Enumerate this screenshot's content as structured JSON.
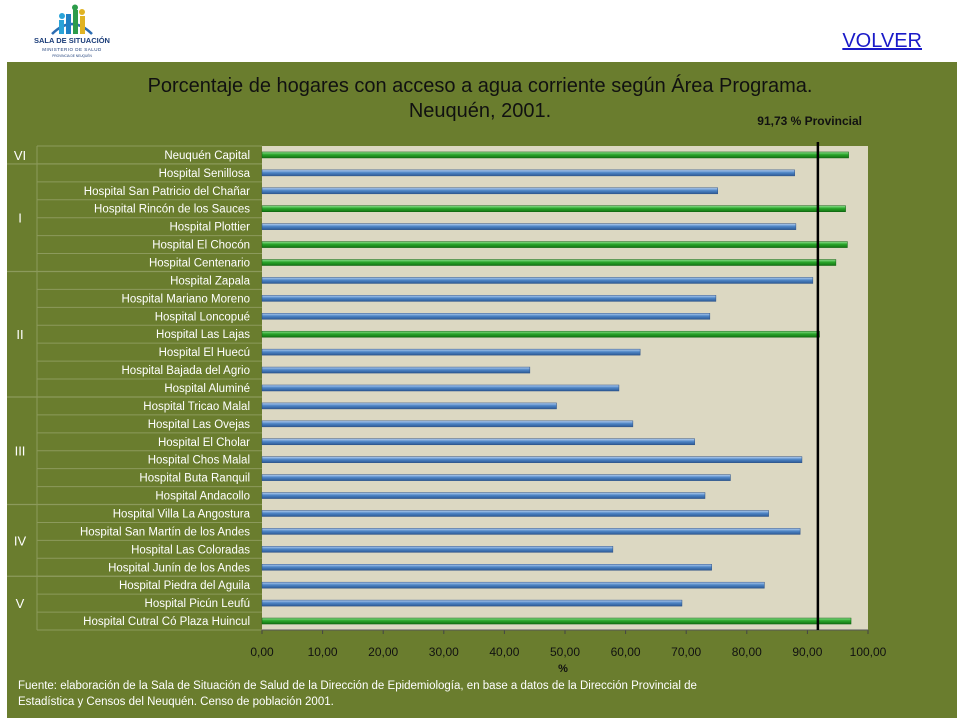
{
  "header": {
    "logo_text": "SALA DE SITUACIÓN",
    "logo_subtext": "MINISTERIO DE SALUD",
    "logo_subtext2": "PROVINCIA DE NEUQUÉN",
    "volver_label": "VOLVER"
  },
  "chart_data": {
    "type": "bar",
    "orientation": "horizontal",
    "title_line1": "Porcentaje de hogares con acceso a agua corriente según Área Programa.",
    "title_line2": "Neuquén, 2001.",
    "xlabel": "%",
    "xlim": [
      0,
      100
    ],
    "xticks": [
      "0,00",
      "10,00",
      "20,00",
      "30,00",
      "40,00",
      "50,00",
      "60,00",
      "70,00",
      "80,00",
      "90,00",
      "100,00"
    ],
    "reference_line": {
      "value": 91.73,
      "label": "91,73 % Provincial"
    },
    "colors": {
      "above": "#2aa52a",
      "below": "#4f86c6",
      "plot_bg": "#dcd8c2",
      "panel_bg": "#6a7d2e"
    },
    "groups": [
      {
        "label": "VI",
        "count": 1
      },
      {
        "label": "I",
        "count": 6
      },
      {
        "label": "II",
        "count": 7
      },
      {
        "label": "III",
        "count": 6
      },
      {
        "label": "IV",
        "count": 4
      },
      {
        "label": "V",
        "count": 3
      }
    ],
    "categories": [
      "Neuquén Capital",
      "Hospital Senillosa",
      "Hospital San Patricio del Chañar",
      "Hospital Rincón de los Sauces",
      "Hospital Plottier",
      "Hospital El Chocón",
      "Hospital Centenario",
      "Hospital Zapala",
      "Hospital Mariano Moreno",
      "Hospital Loncopué",
      "Hospital Las Lajas",
      "Hospital El Huecú",
      "Hospital Bajada del Agrio",
      "Hospital Aluminé",
      "Hospital Tricao Malal",
      "Hospital Las Ovejas",
      "Hospital El Cholar",
      "Hospital Chos Malal",
      "Hospital Buta Ranquil",
      "Hospital Andacollo",
      "Hospital Villa La Angostura",
      "Hospital San Martín de los Andes",
      "Hospital Las Coloradas",
      "Hospital Junín de los Andes",
      "Hospital Piedra del Aguila",
      "Hospital Picún Leufú",
      "Hospital Cutral Có Plaza Huincul"
    ],
    "values": [
      96.8,
      87.9,
      75.2,
      96.3,
      88.1,
      96.6,
      94.7,
      90.9,
      74.9,
      73.9,
      92.0,
      62.4,
      44.2,
      58.9,
      48.6,
      61.2,
      71.4,
      89.1,
      77.3,
      73.1,
      83.6,
      88.8,
      57.9,
      74.2,
      82.9,
      69.3,
      97.2
    ]
  },
  "footnote": {
    "line1": "Fuente: elaboración de la Sala de Situación de Salud de la Dirección de Epidemiología,   en base a datos de la Dirección Provincial de",
    "line2": "Estadística y Censos del Neuquén. Censo de población 2001."
  }
}
